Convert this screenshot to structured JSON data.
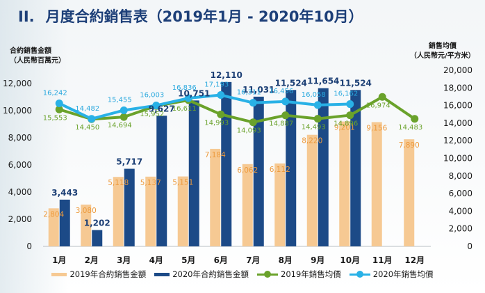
{
  "header": {
    "section": "II.",
    "title": "月度合約銷售表（2019年1月 - 2020年10月）"
  },
  "left_axis_label": {
    "line1": "合約銷售金額",
    "line2": "（人民幣百萬元）"
  },
  "right_axis_label": {
    "line1": "銷售均價",
    "line2": "（人民幣元/平方米）"
  },
  "colors": {
    "bar_2019": "#f6c993",
    "bar_2020": "#1c4a87",
    "line_2019": "#6aa22b",
    "line_2020": "#29b1e6",
    "title": "#1d3f78"
  },
  "chart_data": {
    "type": "bar",
    "categories": [
      "1月",
      "2月",
      "3月",
      "4月",
      "5月",
      "6月",
      "7月",
      "8月",
      "9月",
      "10月",
      "11月",
      "12月"
    ],
    "y_left": {
      "ylim": [
        0,
        12000
      ],
      "ticks": [
        "0",
        "2,000",
        "4,000",
        "6,000",
        "8,000",
        "10,000",
        "12,000"
      ],
      "tick_values": [
        0,
        2000,
        4000,
        6000,
        8000,
        10000,
        12000
      ]
    },
    "y_right": {
      "ylim": [
        0,
        20000
      ],
      "ticks": [
        "0",
        "2,000",
        "4,000",
        "6,000",
        "8,000",
        "10,000",
        "12,000",
        "14,000",
        "16,000",
        "18,000",
        "20,000"
      ],
      "tick_values": [
        0,
        2000,
        4000,
        6000,
        8000,
        10000,
        12000,
        14000,
        16000,
        18000,
        20000
      ]
    },
    "series": [
      {
        "name": "2019年合約銷售金額",
        "kind": "bar",
        "axis": "left",
        "values": [
          2804,
          3080,
          5118,
          5137,
          5151,
          7184,
          6062,
          6112,
          8220,
          9201,
          9156,
          7890
        ],
        "labels": [
          "2,804",
          "3,080",
          "5,118",
          "5,137",
          "5,151",
          "7,184",
          "6,062",
          "6,112",
          "8,220",
          "9,201",
          "9,156",
          "7,890"
        ]
      },
      {
        "name": "2020年合約銷售金額",
        "kind": "bar",
        "axis": "left",
        "values": [
          3443,
          1202,
          5717,
          9627,
          10751,
          12110,
          11031,
          11524,
          11654,
          11524,
          null,
          null
        ],
        "labels": [
          "3,443",
          "1,202",
          "5,717",
          "9,627",
          "10,751",
          "12,110",
          "11,031",
          "11,524",
          "11,654",
          "11,524",
          "",
          ""
        ]
      },
      {
        "name": "2019年銷售均價",
        "kind": "line",
        "axis": "right",
        "values": [
          15553,
          14450,
          14694,
          15952,
          16611,
          14993,
          14093,
          14887,
          14493,
          14896,
          16974,
          14483
        ],
        "labels": [
          "15,553",
          "14,450",
          "14,694",
          "15,952",
          "16,611",
          "14,993",
          "14,093",
          "14,887",
          "14,493",
          "14,896",
          "16,974",
          "14,483"
        ]
      },
      {
        "name": "2020年銷售均價",
        "kind": "line",
        "axis": "right",
        "values": [
          16242,
          14482,
          15455,
          16003,
          16836,
          17193,
          16311,
          16456,
          16058,
          16162,
          null,
          null
        ],
        "labels": [
          "16,242",
          "14,482",
          "15,455",
          "16,003",
          "16,836",
          "17,193",
          "16,311",
          "16,456",
          "16,058",
          "16,162",
          "",
          ""
        ]
      }
    ],
    "legend": {
      "placement": "bottom"
    },
    "grid": false
  }
}
